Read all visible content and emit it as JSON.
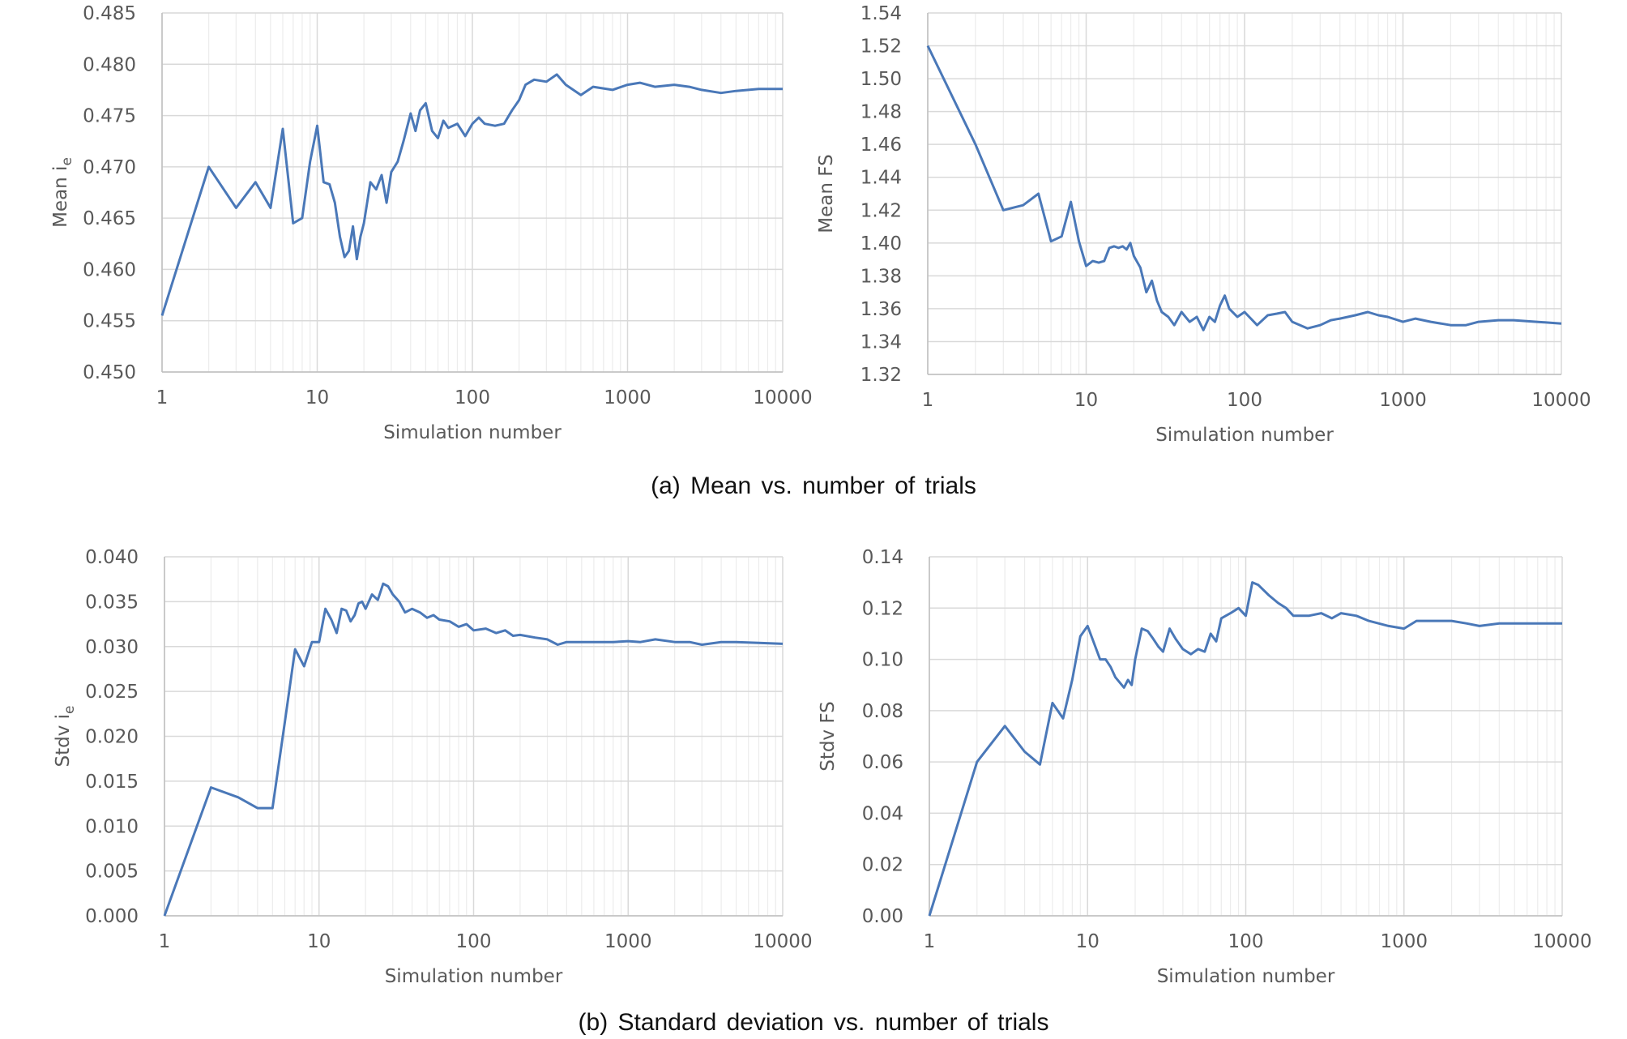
{
  "captions": {
    "a": "(a) Mean vs. number of trials",
    "b": "(b) Standard deviation vs. number of trials"
  },
  "colors": {
    "series": "#4a78b8",
    "grid": "#d9d9d9",
    "axis": "#bfbfbf",
    "text": "#595959"
  },
  "chart_data": [
    {
      "id": "mean-ie",
      "type": "line",
      "xscale": "log",
      "xlim": [
        1,
        10000
      ],
      "ylim": [
        0.45,
        0.485
      ],
      "yticks": [
        "0.450",
        "0.455",
        "0.460",
        "0.465",
        "0.470",
        "0.475",
        "0.480",
        "0.485"
      ],
      "xticks": [
        "1",
        "10",
        "100",
        "1000",
        "10000"
      ],
      "xlabel": "Simulation number",
      "ylabel_main": "Mean i",
      "ylabel_sub": "e",
      "grid": true,
      "x": [
        1,
        2,
        3,
        4,
        5,
        6,
        7,
        8,
        9,
        10,
        11,
        12,
        13,
        14,
        15,
        16,
        17,
        18,
        19,
        20,
        22,
        24,
        26,
        28,
        30,
        33,
        36,
        40,
        43,
        46,
        50,
        55,
        60,
        65,
        70,
        80,
        90,
        100,
        110,
        120,
        140,
        160,
        180,
        200,
        220,
        250,
        300,
        350,
        400,
        500,
        600,
        800,
        1000,
        1200,
        1500,
        2000,
        2500,
        3000,
        4000,
        5000,
        7000,
        10000
      ],
      "y": [
        0.4555,
        0.47,
        0.466,
        0.4685,
        0.466,
        0.4737,
        0.4645,
        0.465,
        0.4705,
        0.474,
        0.4685,
        0.4683,
        0.4665,
        0.4632,
        0.4612,
        0.4618,
        0.4642,
        0.461,
        0.4632,
        0.4645,
        0.4685,
        0.4678,
        0.4692,
        0.4665,
        0.4695,
        0.4705,
        0.4725,
        0.4752,
        0.4735,
        0.4755,
        0.4762,
        0.4735,
        0.4728,
        0.4745,
        0.4738,
        0.4742,
        0.473,
        0.4742,
        0.4748,
        0.4742,
        0.474,
        0.4742,
        0.4755,
        0.4765,
        0.478,
        0.4785,
        0.4783,
        0.479,
        0.478,
        0.477,
        0.4778,
        0.4775,
        0.478,
        0.4782,
        0.4778,
        0.478,
        0.4778,
        0.4775,
        0.4772,
        0.4774,
        0.4776,
        0.4776
      ]
    },
    {
      "id": "mean-fs",
      "type": "line",
      "xscale": "log",
      "xlim": [
        1,
        10000
      ],
      "ylim": [
        1.32,
        1.54
      ],
      "yticks": [
        "1.32",
        "1.34",
        "1.36",
        "1.38",
        "1.40",
        "1.42",
        "1.44",
        "1.46",
        "1.48",
        "1.50",
        "1.52",
        "1.54"
      ],
      "xticks": [
        "1",
        "10",
        "100",
        "1000",
        "10000"
      ],
      "xlabel": "Simulation number",
      "ylabel_main": "Mean FS",
      "ylabel_sub": "",
      "grid": true,
      "x": [
        1,
        2,
        3,
        4,
        5,
        6,
        7,
        8,
        9,
        10,
        11,
        12,
        13,
        14,
        15,
        16,
        17,
        18,
        19,
        20,
        22,
        24,
        26,
        28,
        30,
        33,
        36,
        40,
        45,
        50,
        55,
        60,
        65,
        70,
        75,
        80,
        90,
        100,
        120,
        140,
        160,
        180,
        200,
        250,
        300,
        350,
        400,
        500,
        600,
        700,
        800,
        1000,
        1200,
        1500,
        2000,
        2500,
        3000,
        4000,
        5000,
        7000,
        10000
      ],
      "y": [
        1.52,
        1.46,
        1.42,
        1.423,
        1.43,
        1.401,
        1.404,
        1.425,
        1.401,
        1.386,
        1.389,
        1.388,
        1.389,
        1.397,
        1.398,
        1.397,
        1.398,
        1.396,
        1.4,
        1.392,
        1.385,
        1.37,
        1.377,
        1.365,
        1.358,
        1.355,
        1.35,
        1.358,
        1.352,
        1.355,
        1.347,
        1.355,
        1.352,
        1.362,
        1.368,
        1.36,
        1.355,
        1.358,
        1.35,
        1.356,
        1.357,
        1.358,
        1.352,
        1.348,
        1.35,
        1.353,
        1.354,
        1.356,
        1.358,
        1.356,
        1.355,
        1.352,
        1.354,
        1.352,
        1.35,
        1.35,
        1.352,
        1.353,
        1.353,
        1.352,
        1.351
      ]
    },
    {
      "id": "stdv-ie",
      "type": "line",
      "xscale": "log",
      "xlim": [
        1,
        10000
      ],
      "ylim": [
        0.0,
        0.04
      ],
      "yticks": [
        "0.000",
        "0.005",
        "0.010",
        "0.015",
        "0.020",
        "0.025",
        "0.030",
        "0.035",
        "0.040"
      ],
      "xticks": [
        "1",
        "10",
        "100",
        "1000",
        "10000"
      ],
      "xlabel": "Simulation number",
      "ylabel_main": "Stdv i",
      "ylabel_sub": "e",
      "grid": true,
      "x": [
        1,
        2,
        3,
        4,
        5,
        6,
        7,
        8,
        9,
        10,
        11,
        12,
        13,
        14,
        15,
        16,
        17,
        18,
        19,
        20,
        22,
        24,
        26,
        28,
        30,
        33,
        36,
        40,
        45,
        50,
        55,
        60,
        70,
        80,
        90,
        100,
        120,
        140,
        160,
        180,
        200,
        250,
        300,
        350,
        400,
        500,
        600,
        800,
        1000,
        1200,
        1500,
        2000,
        2500,
        3000,
        4000,
        5000,
        7000,
        10000
      ],
      "y": [
        0.0,
        0.0143,
        0.0132,
        0.012,
        0.012,
        0.0215,
        0.0297,
        0.0278,
        0.0305,
        0.0305,
        0.0342,
        0.033,
        0.0315,
        0.0342,
        0.034,
        0.0328,
        0.0335,
        0.0348,
        0.035,
        0.0342,
        0.0358,
        0.0352,
        0.037,
        0.0367,
        0.0358,
        0.035,
        0.0338,
        0.0342,
        0.0338,
        0.0332,
        0.0335,
        0.033,
        0.0328,
        0.0322,
        0.0325,
        0.0318,
        0.032,
        0.0315,
        0.0318,
        0.0312,
        0.0313,
        0.031,
        0.0308,
        0.0302,
        0.0305,
        0.0305,
        0.0305,
        0.0305,
        0.0306,
        0.0305,
        0.0308,
        0.0305,
        0.0305,
        0.0302,
        0.0305,
        0.0305,
        0.0304,
        0.0303
      ]
    },
    {
      "id": "stdv-fs",
      "type": "line",
      "xscale": "log",
      "xlim": [
        1,
        10000
      ],
      "ylim": [
        0.0,
        0.14
      ],
      "yticks": [
        "0.00",
        "0.02",
        "0.04",
        "0.06",
        "0.08",
        "0.10",
        "0.12",
        "0.14"
      ],
      "xticks": [
        "1",
        "10",
        "100",
        "1000",
        "10000"
      ],
      "xlabel": "Simulation number",
      "ylabel_main": "Stdv FS",
      "ylabel_sub": "",
      "grid": true,
      "x": [
        1,
        2,
        3,
        4,
        5,
        6,
        7,
        8,
        9,
        10,
        12,
        13,
        14,
        15,
        17,
        18,
        19,
        20,
        22,
        24,
        26,
        28,
        30,
        33,
        36,
        40,
        45,
        50,
        55,
        60,
        65,
        70,
        80,
        90,
        100,
        110,
        120,
        140,
        160,
        180,
        200,
        250,
        300,
        350,
        400,
        500,
        600,
        800,
        1000,
        1200,
        1500,
        2000,
        2500,
        3000,
        4000,
        5000,
        7000,
        10000
      ],
      "y": [
        0.0,
        0.06,
        0.074,
        0.064,
        0.059,
        0.083,
        0.077,
        0.092,
        0.109,
        0.113,
        0.1,
        0.1,
        0.097,
        0.093,
        0.089,
        0.092,
        0.09,
        0.1,
        0.112,
        0.111,
        0.108,
        0.105,
        0.103,
        0.112,
        0.108,
        0.104,
        0.102,
        0.104,
        0.103,
        0.11,
        0.107,
        0.116,
        0.118,
        0.12,
        0.117,
        0.13,
        0.129,
        0.125,
        0.122,
        0.12,
        0.117,
        0.117,
        0.118,
        0.116,
        0.118,
        0.117,
        0.115,
        0.113,
        0.112,
        0.115,
        0.115,
        0.115,
        0.114,
        0.113,
        0.114,
        0.114,
        0.114,
        0.114
      ]
    }
  ]
}
